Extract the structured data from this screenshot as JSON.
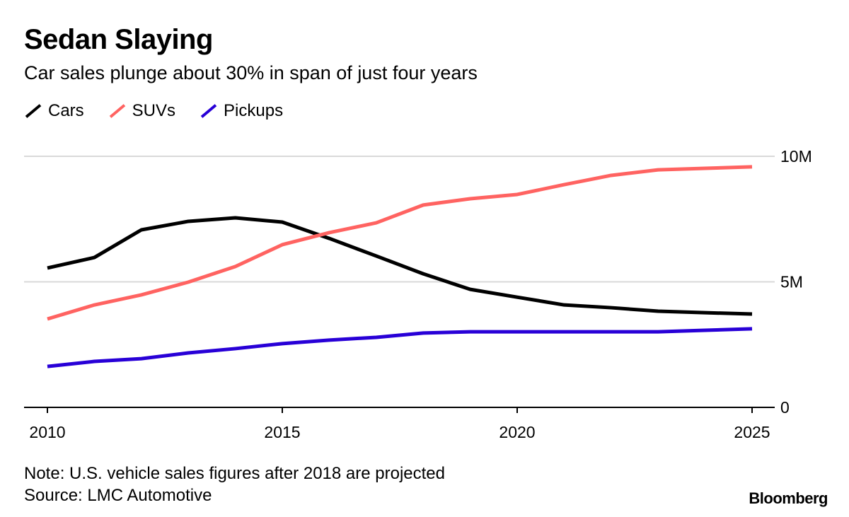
{
  "chart_data": {
    "type": "line",
    "title": "Sedan Slaying",
    "subtitle": "Car sales plunge about 30% in span of just four years",
    "x": [
      2010,
      2011,
      2012,
      2013,
      2014,
      2015,
      2016,
      2017,
      2018,
      2019,
      2020,
      2021,
      2022,
      2023,
      2024,
      2025
    ],
    "series": [
      {
        "name": "Cars",
        "color": "#000000",
        "values": [
          5.55,
          5.97,
          7.07,
          7.41,
          7.55,
          7.38,
          6.73,
          6.03,
          5.32,
          4.7,
          4.39,
          4.08,
          3.97,
          3.83,
          3.77,
          3.72
        ]
      },
      {
        "name": "SUVs",
        "color": "#ff6361",
        "values": [
          3.52,
          4.08,
          4.48,
          4.99,
          5.61,
          6.48,
          6.96,
          7.35,
          8.06,
          8.31,
          8.48,
          8.87,
          9.24,
          9.46,
          9.52,
          9.58
        ]
      },
      {
        "name": "Pickups",
        "color": "#2800d7",
        "values": [
          1.63,
          1.83,
          1.94,
          2.17,
          2.34,
          2.54,
          2.68,
          2.79,
          2.96,
          3.01,
          3.01,
          3.01,
          3.01,
          3.01,
          3.07,
          3.13
        ]
      }
    ],
    "xlim": [
      2010,
      2025
    ],
    "ylim": [
      0,
      10
    ],
    "x_ticks": [
      {
        "value": 2010,
        "label": "2010"
      },
      {
        "value": 2015,
        "label": "2015"
      },
      {
        "value": 2020,
        "label": "2020"
      },
      {
        "value": 2025,
        "label": "2025"
      }
    ],
    "y_ticks": [
      {
        "value": 0,
        "label": "0"
      },
      {
        "value": 5,
        "label": "5M"
      },
      {
        "value": 10,
        "label": "10M"
      }
    ],
    "grid": true,
    "legend_position": "top-left",
    "note": "Note: U.S. vehicle sales figures after 2018 are projected",
    "source": "Source: LMC Automotive"
  },
  "branding": "Bloomberg"
}
